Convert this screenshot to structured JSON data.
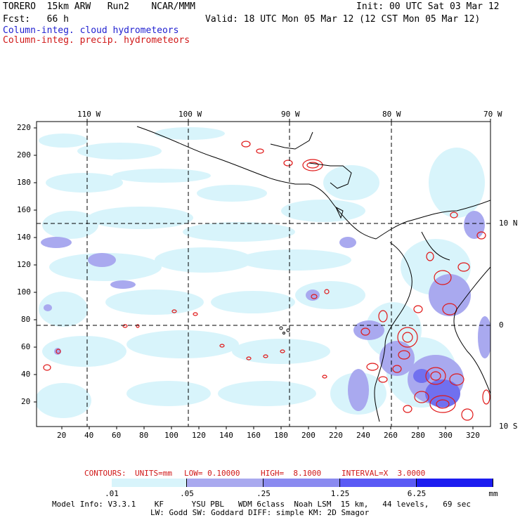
{
  "header": {
    "title_left": "TORERO  15km ARW   Run2    NCAR/MMM",
    "init": "Init: 00 UTC Sat 03 Mar 12",
    "fcst": "Fcst:   66 h",
    "valid": "Valid: 18 UTC Mon 05 Mar 12 (12 CST Mon 05 Mar 12)",
    "field1": "Column-integ. cloud hydrometeors",
    "field2": "Column-integ. precip. hydrometeors"
  },
  "axes": {
    "top_lon_labels": [
      "110 W",
      "100 W",
      "90 W",
      "80 W",
      "70 W"
    ],
    "right_lat_labels": [
      "10 N",
      "0",
      "10 S"
    ],
    "left_y_ticks": [
      "220",
      "200",
      "180",
      "160",
      "140",
      "120",
      "100",
      "80",
      "60",
      "40",
      "20"
    ],
    "bottom_x_ticks": [
      "20",
      "40",
      "60",
      "80",
      "100",
      "120",
      "140",
      "160",
      "180",
      "200",
      "220",
      "240",
      "260",
      "280",
      "300",
      "320"
    ]
  },
  "contour_info": {
    "label": "CONTOURS:",
    "units": "UNITS=mm",
    "low": "LOW= 0.10000",
    "high": "HIGH=  8.1000",
    "interval": "INTERVAL=X  3.0000"
  },
  "colorbar": {
    "labels": [
      ".01",
      ".05",
      ".25",
      "1.25",
      "6.25"
    ],
    "unit": "mm",
    "colors": [
      "#ffffff",
      "#d8f4fb",
      "#a9a9ef",
      "#8a8af0",
      "#5a5af5",
      "#1c1cf0"
    ]
  },
  "model_info": {
    "line1": "Model Info: V3.3.1    KF      YSU PBL   WDM 6class  Noah LSM  15 km,   44 levels,   69 sec",
    "line2": "LW: Godd SW: Goddard DIFF: simple KM: 2D Smagor"
  }
}
